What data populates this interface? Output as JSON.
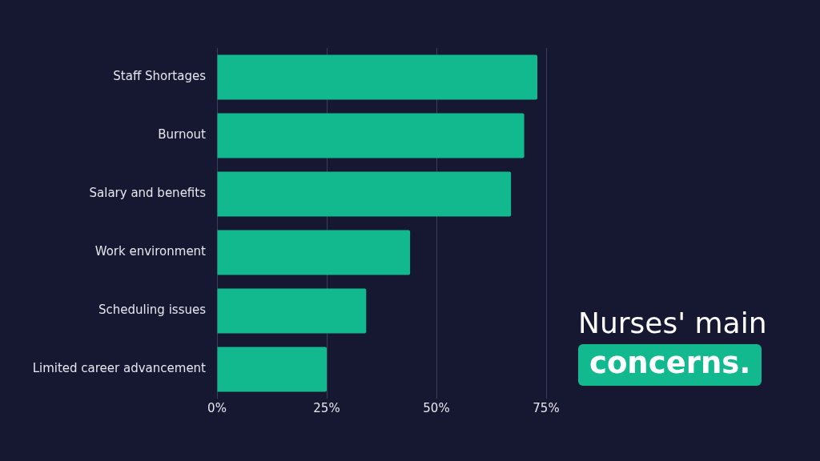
{
  "chart_data": {
    "type": "bar",
    "orientation": "horizontal",
    "title": "Nurses' main",
    "subtitle": "concerns.",
    "categories": [
      "Staff Shortages",
      "Burnout",
      "Salary and benefits",
      "Work environment",
      "Scheduling issues",
      "Limited career advancement"
    ],
    "values": [
      73,
      70,
      67,
      44,
      34,
      25
    ],
    "color": "#12b98f",
    "xlim": [
      0,
      75
    ],
    "xticks": [
      {
        "value": 0,
        "label": "0%"
      },
      {
        "value": 25,
        "label": "25%"
      },
      {
        "value": 50,
        "label": "50%"
      },
      {
        "value": 75,
        "label": "75%"
      }
    ],
    "grid": true
  }
}
